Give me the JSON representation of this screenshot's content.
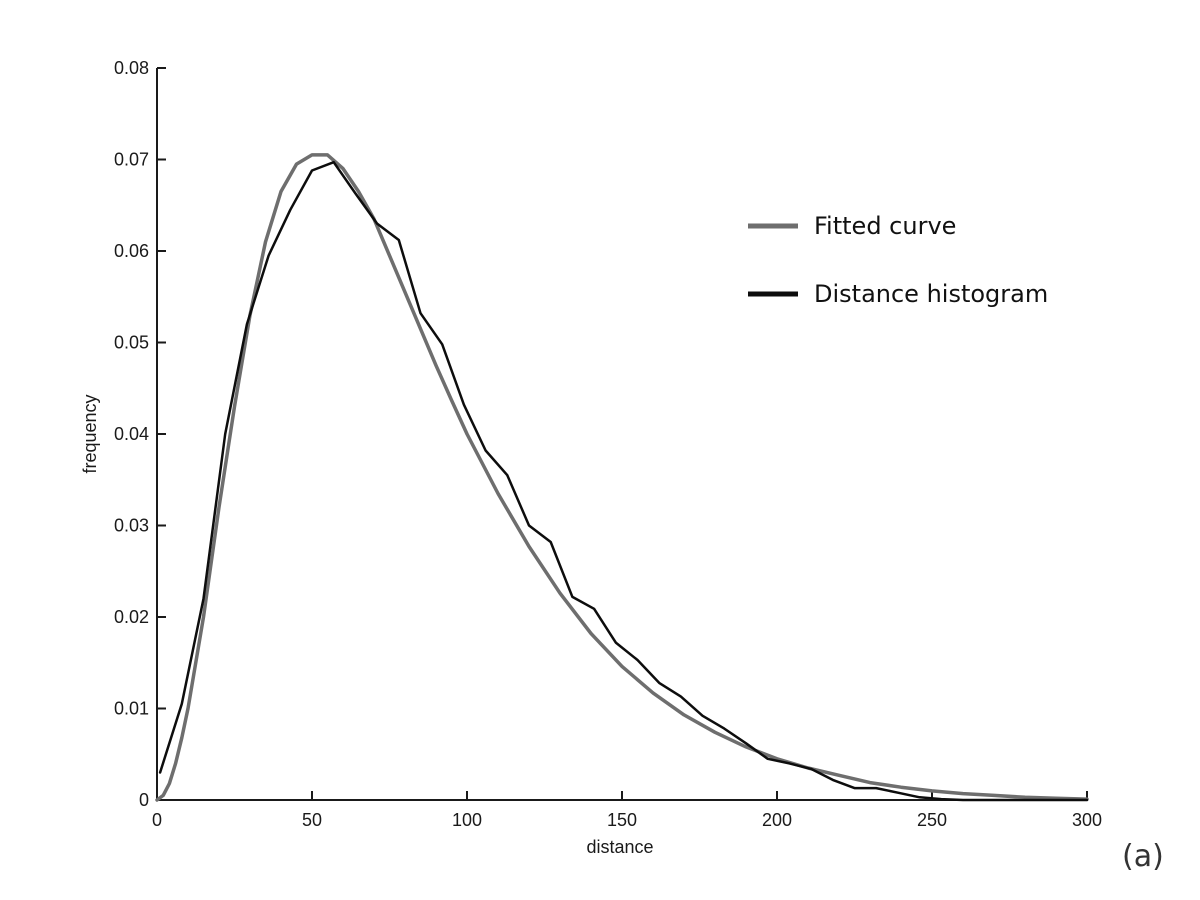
{
  "chart_data": {
    "type": "line",
    "xlabel": "distance",
    "ylabel": "frequency",
    "xlim": [
      0,
      300
    ],
    "ylim": [
      0,
      0.08
    ],
    "x_ticks": [
      "0",
      "50",
      "100",
      "150",
      "200",
      "250",
      "300"
    ],
    "y_ticks": [
      "0",
      "0.01",
      "0.02",
      "0.03",
      "0.04",
      "0.05",
      "0.06",
      "0.07",
      "0.08"
    ],
    "grid": false,
    "legend_position": "top-right",
    "panel_label": "(a)",
    "series": [
      {
        "name": "Fitted curve",
        "color": "#6e6e6e",
        "x": [
          0,
          2,
          4,
          6,
          8,
          10,
          15,
          20,
          25,
          30,
          35,
          40,
          45,
          50,
          55,
          60,
          65,
          70,
          75,
          80,
          85,
          90,
          95,
          100,
          110,
          120,
          130,
          140,
          150,
          160,
          170,
          180,
          190,
          200,
          210,
          220,
          230,
          240,
          250,
          260,
          270,
          280,
          290,
          300
        ],
        "y": [
          0.0,
          0.0005,
          0.0018,
          0.004,
          0.0068,
          0.01,
          0.02,
          0.032,
          0.043,
          0.053,
          0.061,
          0.0665,
          0.0695,
          0.0705,
          0.0705,
          0.069,
          0.0665,
          0.0635,
          0.0595,
          0.0555,
          0.0515,
          0.0475,
          0.0437,
          0.04,
          0.0335,
          0.0277,
          0.0226,
          0.0182,
          0.0146,
          0.0117,
          0.0093,
          0.0074,
          0.0058,
          0.0045,
          0.0035,
          0.0027,
          0.0019,
          0.0014,
          0.001,
          0.0007,
          0.0005,
          0.0003,
          0.0002,
          0.0001
        ]
      },
      {
        "name": "Distance histogram",
        "color": "#0d0d0d",
        "x": [
          1,
          8,
          15,
          22,
          29,
          36,
          43,
          50,
          57,
          64,
          71,
          78,
          85,
          92,
          99,
          106,
          113,
          120,
          127,
          134,
          141,
          148,
          155,
          162,
          169,
          176,
          183,
          190,
          197,
          204,
          211,
          218,
          225,
          232,
          239,
          246,
          253,
          260,
          267,
          274,
          281,
          288,
          295,
          300
        ],
        "y": [
          0.003,
          0.0105,
          0.022,
          0.04,
          0.052,
          0.0595,
          0.0645,
          0.0688,
          0.0697,
          0.0663,
          0.063,
          0.0612,
          0.0532,
          0.0498,
          0.0432,
          0.0382,
          0.0355,
          0.03,
          0.0282,
          0.0222,
          0.0209,
          0.0172,
          0.0153,
          0.0128,
          0.0113,
          0.0092,
          0.0078,
          0.0062,
          0.0045,
          0.004,
          0.0034,
          0.0022,
          0.0013,
          0.0013,
          0.0008,
          0.0003,
          0.0001,
          0.0,
          0.0,
          0.0,
          0.0,
          0.0,
          0.0,
          0.0
        ]
      }
    ]
  }
}
